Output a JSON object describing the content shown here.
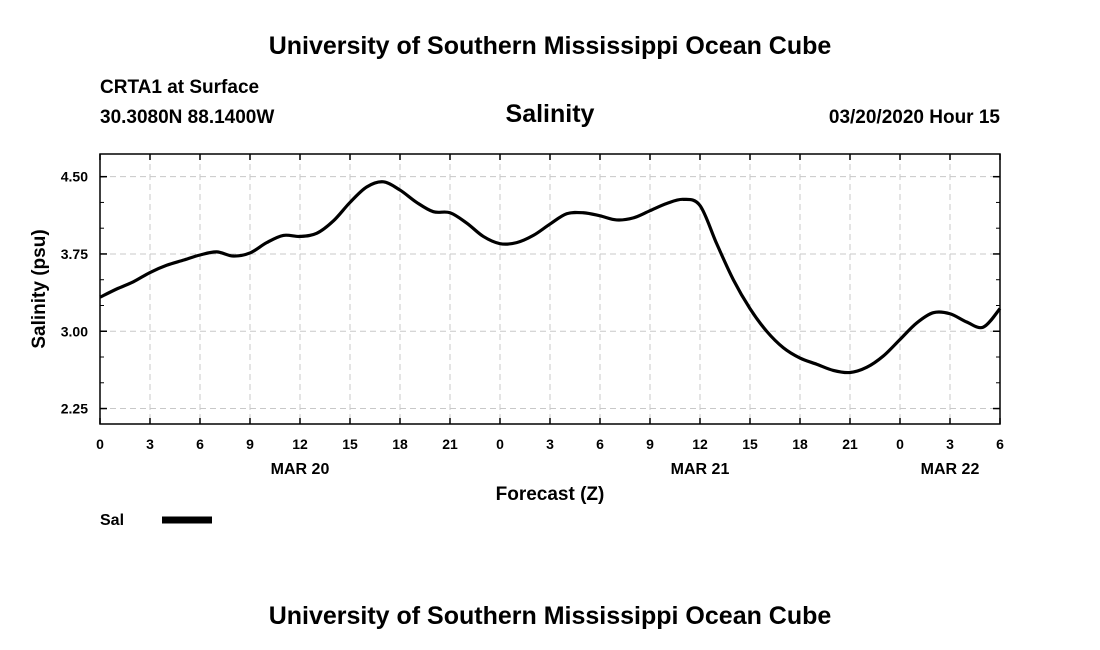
{
  "header": {
    "top_title": "University of Southern Mississippi Ocean Cube",
    "bottom_title": "University of Southern Mississippi Ocean Cube",
    "station": "CRTA1 at Surface",
    "location": "30.3080N 88.1400W",
    "timestamp": "03/20/2020 Hour 15"
  },
  "legend": {
    "label": "Sal",
    "color": "#000000"
  },
  "chart_data": {
    "type": "line",
    "title": "Salinity",
    "xlabel": "Forecast (Z)",
    "ylabel": "Salinity (psu)",
    "x_range_hours": [
      0,
      54
    ],
    "ylim": [
      2.1,
      4.72
    ],
    "y_ticks": [
      "4.50",
      "3.75",
      "3.00",
      "2.25"
    ],
    "y_tick_values": [
      4.5,
      3.75,
      3.0,
      2.25
    ],
    "x_tick_hours": [
      0,
      3,
      6,
      9,
      12,
      15,
      18,
      21,
      24,
      27,
      30,
      33,
      36,
      39,
      42,
      45,
      48,
      51,
      54
    ],
    "x_tick_labels": [
      "0",
      "3",
      "6",
      "9",
      "12",
      "15",
      "18",
      "21",
      "0",
      "3",
      "6",
      "9",
      "12",
      "15",
      "18",
      "21",
      "0",
      "3",
      "6"
    ],
    "date_labels": [
      {
        "text": "MAR 20",
        "hour": 12
      },
      {
        "text": "MAR 21",
        "hour": 36
      },
      {
        "text": "MAR 22",
        "hour": 51
      }
    ],
    "grid": true,
    "series": [
      {
        "name": "Sal",
        "color": "#000000",
        "x": [
          0,
          1,
          2,
          3,
          4,
          5,
          6,
          7,
          8,
          9,
          10,
          11,
          12,
          13,
          14,
          15,
          16,
          17,
          18,
          19,
          20,
          21,
          22,
          23,
          24,
          25,
          26,
          27,
          28,
          29,
          30,
          31,
          32,
          33,
          34,
          35,
          36,
          37,
          38,
          39,
          40,
          41,
          42,
          43,
          44,
          45,
          46,
          47,
          48,
          49,
          50,
          51,
          52,
          53,
          54
        ],
        "y": [
          3.33,
          3.41,
          3.48,
          3.57,
          3.64,
          3.69,
          3.74,
          3.77,
          3.73,
          3.76,
          3.86,
          3.93,
          3.92,
          3.95,
          4.07,
          4.25,
          4.4,
          4.45,
          4.37,
          4.25,
          4.16,
          4.15,
          4.05,
          3.92,
          3.85,
          3.86,
          3.93,
          4.04,
          4.14,
          4.15,
          4.12,
          4.08,
          4.1,
          4.17,
          4.24,
          4.28,
          4.22,
          3.85,
          3.5,
          3.22,
          3.0,
          2.84,
          2.74,
          2.68,
          2.62,
          2.6,
          2.65,
          2.76,
          2.92,
          3.08,
          3.18,
          3.17,
          3.09,
          3.04,
          3.22
        ]
      }
    ]
  }
}
